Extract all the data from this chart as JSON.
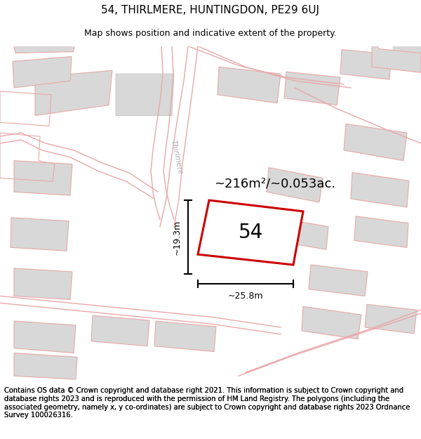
{
  "title": "54, THIRLMERE, HUNTINGDON, PE29 6UJ",
  "subtitle": "Map shows position and indicative extent of the property.",
  "footer": "Contains OS data © Crown copyright and database right 2021. This information is subject to Crown copyright and database rights 2023 and is reproduced with the permission of HM Land Registry. The polygons (including the associated geometry, namely x, y co-ordinates) are subject to Crown copyright and database rights 2023 Ordnance Survey 100026316.",
  "area_label": "~216m²/~0.053ac.",
  "plot_number": "54",
  "dim_width": "~25.8m",
  "dim_height": "~19.3m",
  "street_label": "Thirlmere",
  "map_bg": "#f8f7f7",
  "plot_color": "#cc0000",
  "building_fill": "#d8d8d8",
  "building_stroke": "#e8a8a8",
  "road_color": "#e8a8a8",
  "title_fontsize": 11,
  "subtitle_fontsize": 9,
  "footer_fontsize": 7.2
}
